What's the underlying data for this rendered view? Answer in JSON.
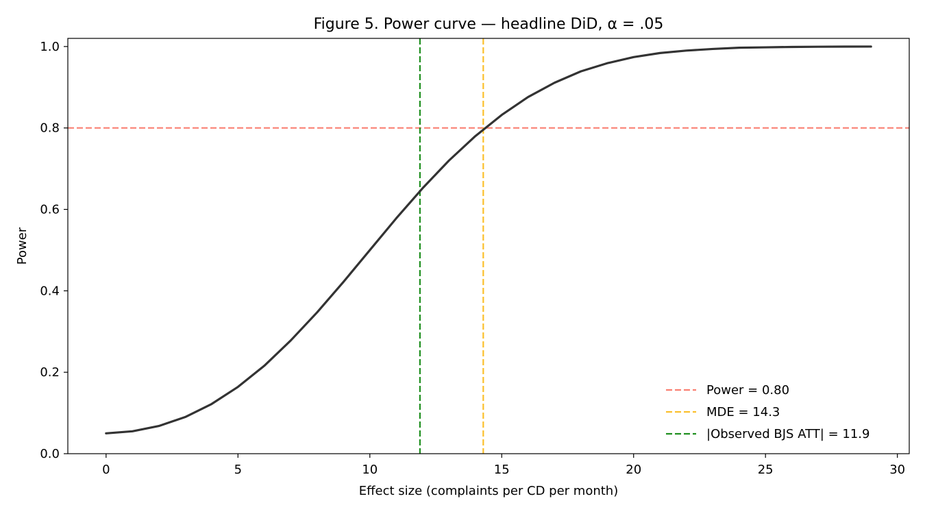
{
  "chart_data": {
    "type": "line",
    "title": "Figure 5. Power curve — headline DiD, α = .05",
    "xlabel": "Effect size (complaints per CD per month)",
    "ylabel": "Power",
    "xlim": [
      -1.45,
      30.45
    ],
    "ylim": [
      0.0,
      1.02
    ],
    "xticks": [
      0,
      5,
      10,
      15,
      20,
      25,
      30
    ],
    "yticks": [
      0.0,
      0.2,
      0.4,
      0.6,
      0.8,
      1.0
    ],
    "xtick_labels": [
      "0",
      "5",
      "10",
      "15",
      "20",
      "25",
      "30"
    ],
    "ytick_labels": [
      "0.0",
      "0.2",
      "0.4",
      "0.6",
      "0.8",
      "1.0"
    ],
    "grid": false,
    "legend_position": "lower-right",
    "series": [
      {
        "color": "#333333",
        "x": [
          0,
          1,
          2,
          3,
          4,
          5,
          6,
          7,
          8,
          9,
          10,
          11,
          12,
          13,
          14,
          15,
          16,
          17,
          18,
          19,
          20,
          21,
          22,
          23,
          24,
          25,
          26,
          27,
          28,
          29
        ],
        "y": [
          0.05,
          0.055,
          0.068,
          0.09,
          0.122,
          0.164,
          0.216,
          0.278,
          0.347,
          0.422,
          0.5,
          0.578,
          0.652,
          0.72,
          0.78,
          0.832,
          0.876,
          0.911,
          0.939,
          0.959,
          0.974,
          0.984,
          0.99,
          0.994,
          0.997,
          0.998,
          0.999,
          0.9995,
          0.9998,
          0.9999
        ]
      }
    ],
    "reference_lines": [
      {
        "orientation": "horizontal",
        "value": 0.8,
        "color": "#fa8072",
        "label": "Power = 0.80"
      },
      {
        "orientation": "vertical",
        "value": 14.3,
        "color": "#fbc02d",
        "label": "MDE = 14.3"
      },
      {
        "orientation": "vertical",
        "value": 11.9,
        "color": "#1f8f1f",
        "label": "|Observed BJS ATT| = 11.9"
      }
    ]
  }
}
